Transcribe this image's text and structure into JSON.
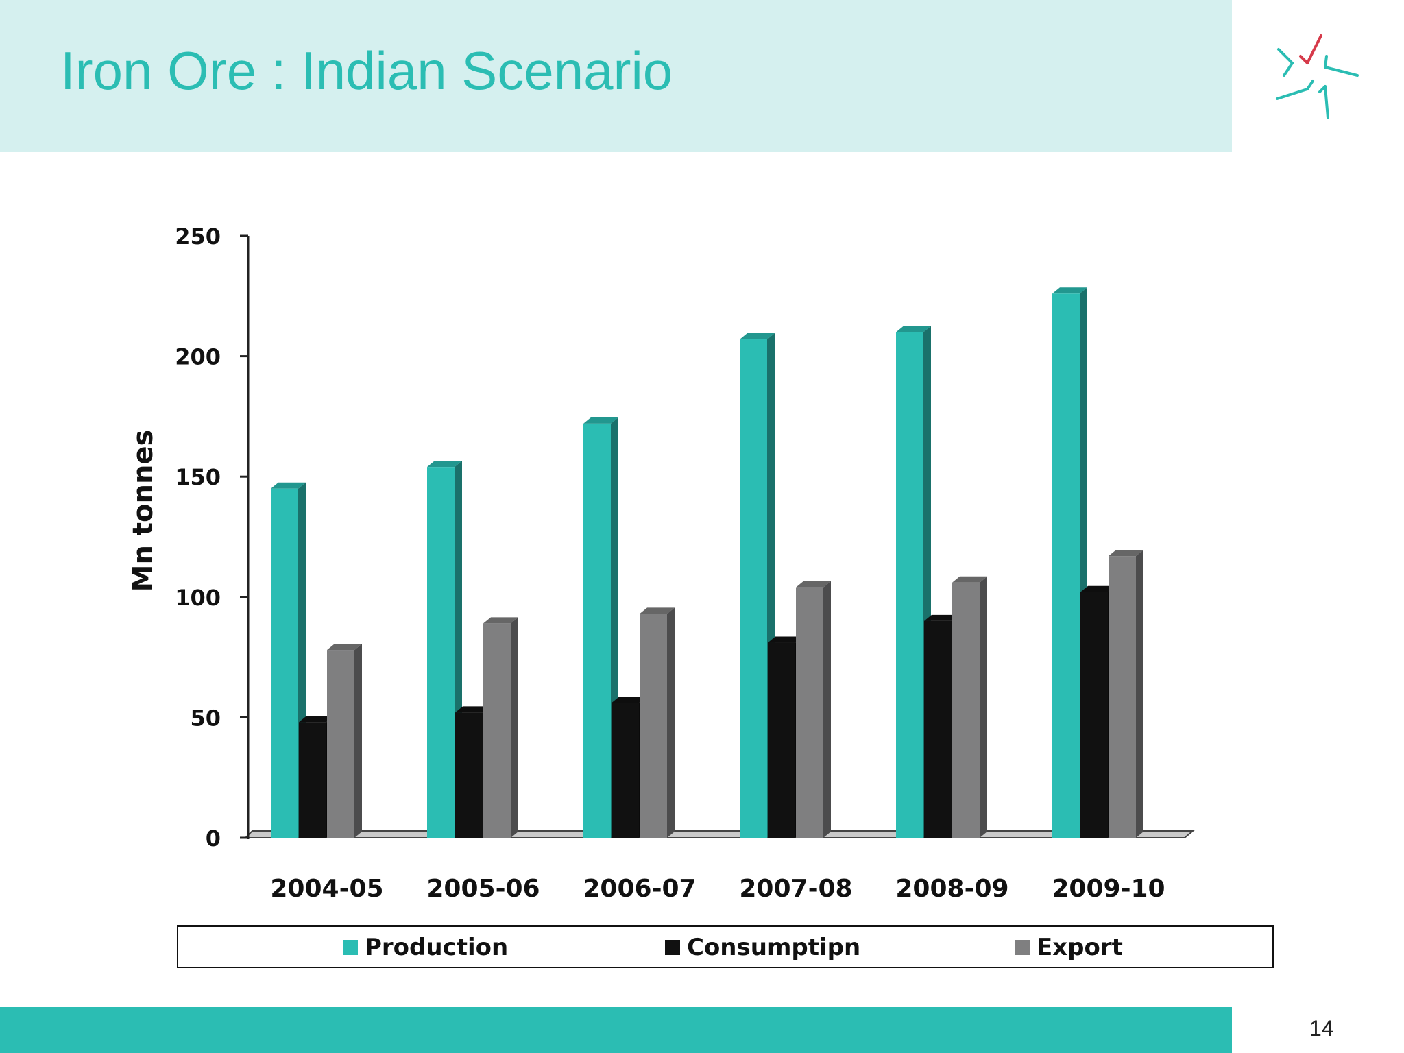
{
  "slide": {
    "title": "Iron Ore : Indian Scenario",
    "page_number": "14"
  },
  "colors": {
    "header_band": "#d5f0ef",
    "title": "#2bbdb3",
    "footer_band": "#2bbdb3",
    "production": "#2bbdb3",
    "consumption": "#111111",
    "export": "#7f7f80"
  },
  "chart_data": {
    "type": "bar",
    "style": "3d-clustered-column",
    "title": "",
    "xlabel": "",
    "ylabel": "Mn tonnes",
    "ylim": [
      0,
      250
    ],
    "yticks": [
      0,
      50,
      100,
      150,
      200,
      250
    ],
    "categories": [
      "2004-05",
      "2005-06",
      "2006-07",
      "2007-08",
      "2008-09",
      "2009-10"
    ],
    "series": [
      {
        "name": "Production",
        "color": "#2bbdb3",
        "values": [
          145,
          154,
          172,
          207,
          210,
          226
        ]
      },
      {
        "name": "Consumptipn",
        "color": "#111111",
        "values": [
          48,
          52,
          56,
          81,
          90,
          102
        ]
      },
      {
        "name": "Export",
        "color": "#7f7f80",
        "values": [
          78,
          89,
          93,
          104,
          106,
          117
        ]
      }
    ],
    "legend_position": "bottom",
    "grid": false
  }
}
